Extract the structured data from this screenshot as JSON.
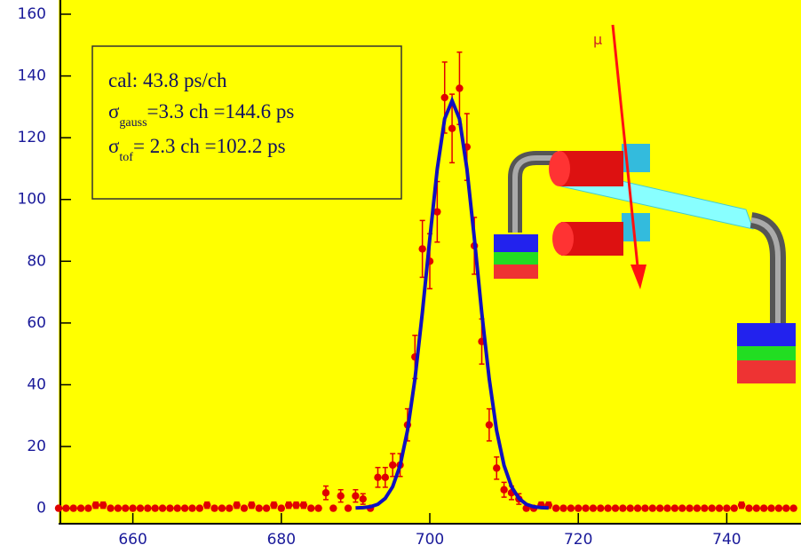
{
  "chart_data": {
    "type": "scatter",
    "x": [
      650,
      651,
      652,
      653,
      654,
      655,
      656,
      657,
      658,
      659,
      660,
      661,
      662,
      663,
      664,
      665,
      666,
      667,
      668,
      669,
      670,
      671,
      672,
      673,
      674,
      675,
      676,
      677,
      678,
      679,
      680,
      681,
      682,
      683,
      684,
      685,
      686,
      687,
      688,
      689,
      690,
      691,
      692,
      693,
      694,
      695,
      696,
      697,
      698,
      699,
      700,
      701,
      702,
      703,
      704,
      705,
      706,
      707,
      708,
      709,
      710,
      711,
      712,
      713,
      714,
      715,
      716,
      717,
      718,
      719,
      720,
      721,
      722,
      723,
      724,
      725,
      726,
      727,
      728,
      729,
      730,
      731,
      732,
      733,
      734,
      735,
      736,
      737,
      738,
      739,
      740,
      741,
      742,
      743,
      744,
      745,
      746,
      747,
      748,
      749
    ],
    "values": [
      0,
      0,
      0,
      0,
      0,
      1,
      1,
      0,
      0,
      0,
      0,
      0,
      0,
      0,
      0,
      0,
      0,
      0,
      0,
      0,
      1,
      0,
      0,
      0,
      1,
      0,
      1,
      0,
      0,
      1,
      0,
      1,
      1,
      1,
      0,
      0,
      5,
      0,
      4,
      0,
      4,
      3,
      0,
      10,
      10,
      14,
      14,
      27,
      49,
      84,
      80,
      96,
      133,
      123,
      136,
      117,
      85,
      54,
      27,
      13,
      6,
      5,
      3,
      0,
      0,
      1,
      1,
      0,
      0,
      0,
      0,
      0,
      0,
      0,
      0,
      0,
      0,
      0,
      0,
      0,
      0,
      0,
      0,
      0,
      0,
      0,
      0,
      0,
      0,
      0,
      0,
      0,
      1,
      0,
      0,
      0,
      0,
      0,
      0,
      0
    ],
    "errors": [
      null,
      null,
      null,
      null,
      null,
      1,
      1,
      null,
      null,
      null,
      null,
      null,
      null,
      null,
      null,
      null,
      null,
      null,
      null,
      null,
      1,
      null,
      null,
      null,
      1,
      null,
      1,
      null,
      null,
      1,
      null,
      1,
      1,
      1,
      null,
      null,
      2.2,
      null,
      2,
      null,
      2,
      1.7,
      null,
      3.2,
      3.2,
      3.7,
      3.7,
      5.2,
      7,
      9.2,
      8.9,
      9.8,
      11.5,
      11.1,
      11.7,
      10.8,
      9.2,
      7.3,
      5.2,
      3.6,
      2.4,
      2.2,
      1.7,
      null,
      null,
      1,
      1,
      null,
      null,
      null,
      null,
      null,
      null,
      null,
      null,
      null,
      null,
      null,
      null,
      null,
      null,
      null,
      null,
      null,
      null,
      null,
      null,
      null,
      null,
      null,
      null,
      null,
      1,
      null,
      null,
      null,
      null,
      null,
      null,
      null
    ],
    "color": "#e00000",
    "fit": {
      "color": "#1010c0",
      "x": [
        690,
        691,
        692,
        693,
        694,
        695,
        696,
        697,
        698,
        699,
        700,
        701,
        702,
        703,
        704,
        705,
        706,
        707,
        708,
        709,
        710,
        711,
        712,
        713,
        714,
        715,
        716
      ],
      "values": [
        0.1,
        0.2,
        0.5,
        1.3,
        3.2,
        7.0,
        13.9,
        25.2,
        41.9,
        63.3,
        87.3,
        109.9,
        126.1,
        132,
        126.1,
        109.9,
        87.3,
        63.3,
        41.9,
        25.2,
        13.9,
        7.0,
        3.2,
        1.3,
        0.5,
        0.2,
        0.1
      ]
    },
    "xlim": [
      650,
      750
    ],
    "ylim": [
      -5,
      160
    ],
    "xticks": [
      660,
      680,
      700,
      720,
      740
    ],
    "yticks": [
      0,
      20,
      40,
      60,
      80,
      100,
      120,
      140,
      160
    ],
    "annotations": {
      "cal": "cal: 43.8 ps/ch",
      "sigma": "σ",
      "gauss_sub": "gauss",
      "gauss_text": "=3.3 ch =144.6 ps",
      "tof_sub": "tof",
      "tof_text": "=  2.3 ch =102.2 ps",
      "mu": "μ"
    }
  }
}
